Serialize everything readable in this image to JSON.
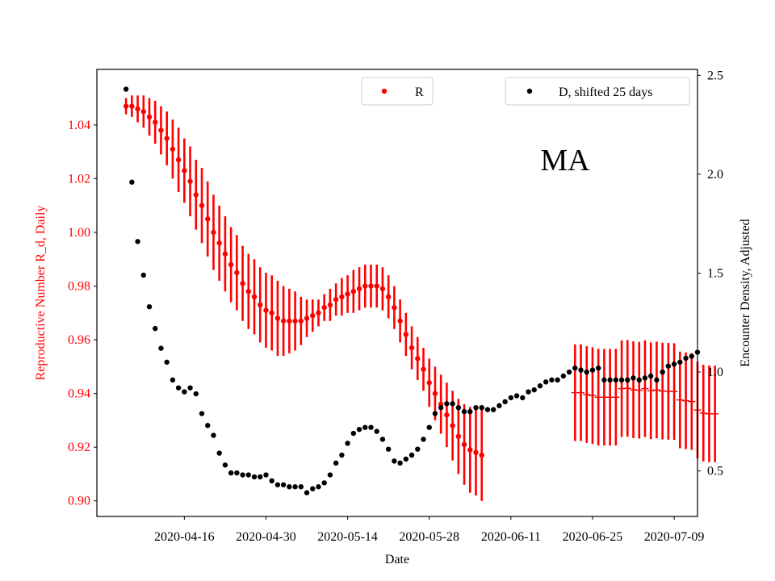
{
  "chart_data": {
    "type": "scatter",
    "annotation": "MA",
    "xlabel": "Date",
    "ylabel_left": "Reproductive Number R_d, Daily",
    "ylabel_right": "Encounter Density, Adjusted",
    "x_start": "2020-04-06",
    "x_ticks": [
      "2020-04-16",
      "2020-04-30",
      "2020-05-14",
      "2020-05-28",
      "2020-06-11",
      "2020-06-25",
      "2020-07-09"
    ],
    "xlim": [
      "2020-04-01",
      "2020-07-13"
    ],
    "ylim_left": [
      0.8942,
      1.0607
    ],
    "yticks_left": [
      "0.90",
      "0.92",
      "0.94",
      "0.96",
      "0.98",
      "1.00",
      "1.02",
      "1.04"
    ],
    "ylim_right": [
      0.27,
      2.53
    ],
    "yticks_right": [
      "0.5",
      "1.0",
      "1.5",
      "2.0",
      "2.5"
    ],
    "colors": {
      "R": "#ff0000",
      "D": "#000000",
      "left_axis": "#ff0000",
      "right_axis": "#000000"
    },
    "legend": [
      {
        "label": "R",
        "color": "#ff0000",
        "position": "top-center"
      },
      {
        "label": "D, shifted 25 days",
        "color": "#000000",
        "position": "top-right"
      }
    ],
    "series": [
      {
        "name": "R",
        "axis": "left",
        "marker": "point",
        "values": [
          1.047,
          1.047,
          1.046,
          1.045,
          1.043,
          1.041,
          1.038,
          1.035,
          1.031,
          1.027,
          1.023,
          1.019,
          1.014,
          1.01,
          1.005,
          1.0,
          0.996,
          0.992,
          0.988,
          0.985,
          0.981,
          0.978,
          0.976,
          0.973,
          0.971,
          0.97,
          0.968,
          0.967,
          0.967,
          0.967,
          0.967,
          0.968,
          0.969,
          0.97,
          0.972,
          0.973,
          0.975,
          0.976,
          0.977,
          0.978,
          0.979,
          0.98,
          0.98,
          0.98,
          0.979,
          0.976,
          0.972,
          0.967,
          0.962,
          0.957,
          0.953,
          0.949,
          0.944,
          0.94,
          0.936,
          0.932,
          0.928,
          0.924,
          0.921,
          0.919,
          0.918,
          0.917
        ],
        "error": [
          0.003,
          0.004,
          0.005,
          0.006,
          0.007,
          0.008,
          0.009,
          0.01,
          0.011,
          0.012,
          0.012,
          0.013,
          0.013,
          0.014,
          0.014,
          0.014,
          0.014,
          0.014,
          0.014,
          0.014,
          0.014,
          0.014,
          0.014,
          0.014,
          0.014,
          0.014,
          0.014,
          0.013,
          0.012,
          0.011,
          0.009,
          0.007,
          0.006,
          0.005,
          0.005,
          0.006,
          0.006,
          0.007,
          0.007,
          0.008,
          0.008,
          0.008,
          0.008,
          0.008,
          0.008,
          0.008,
          0.008,
          0.008,
          0.008,
          0.008,
          0.008,
          0.008,
          0.009,
          0.01,
          0.011,
          0.012,
          0.013,
          0.014,
          0.015,
          0.016,
          0.016,
          0.017
        ],
        "flat_segment": {
          "start_day": 77,
          "end_day": 101,
          "values": [
            0.9403,
            0.9403,
            0.9396,
            0.9392,
            0.9386,
            0.9386,
            0.9386,
            0.9386,
            0.9418,
            0.9419,
            0.9414,
            0.9412,
            0.9418,
            0.941,
            0.9413,
            0.9409,
            0.9408,
            0.9407,
            0.9376,
            0.9373,
            0.937,
            0.9338,
            0.9327,
            0.9324,
            0.9324
          ],
          "error": 0.018
        }
      },
      {
        "name": "D, shifted 25 days",
        "axis": "right",
        "marker": "point",
        "values": [
          2.43,
          1.96,
          1.66,
          1.49,
          1.33,
          1.22,
          1.12,
          1.05,
          0.96,
          0.92,
          0.9,
          0.92,
          0.89,
          0.79,
          0.73,
          0.68,
          0.59,
          0.53,
          0.49,
          0.49,
          0.48,
          0.48,
          0.47,
          0.47,
          0.48,
          0.45,
          0.43,
          0.43,
          0.42,
          0.42,
          0.42,
          0.39,
          0.41,
          0.42,
          0.44,
          0.48,
          0.54,
          0.58,
          0.64,
          0.69,
          0.71,
          0.72,
          0.72,
          0.7,
          0.66,
          0.61,
          0.55,
          0.54,
          0.56,
          0.58,
          0.61,
          0.66,
          0.72,
          0.79,
          0.82,
          0.84,
          0.84,
          0.82,
          0.8,
          0.8,
          0.82,
          0.82,
          0.81,
          0.81,
          0.83,
          0.85,
          0.87,
          0.88,
          0.87,
          0.9,
          0.91,
          0.93,
          0.95,
          0.96,
          0.96,
          0.98,
          1.0,
          1.02,
          1.01,
          1.0,
          1.01,
          1.02,
          0.96,
          0.96,
          0.96,
          0.96,
          0.96,
          0.97,
          0.96,
          0.97,
          0.98,
          0.96,
          1.0,
          1.03,
          1.04,
          1.05,
          1.07,
          1.08,
          1.1
        ]
      }
    ]
  }
}
